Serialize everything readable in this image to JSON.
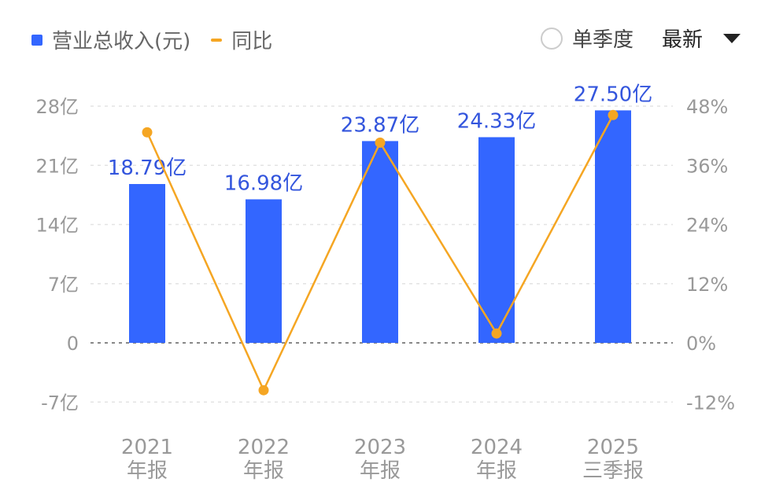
{
  "legend": {
    "bar_label": "营业总收入(元)",
    "line_label": "同比"
  },
  "controls": {
    "single_quarter_label": "单季度",
    "latest_label": "最新"
  },
  "colors": {
    "bar": "#3366ff",
    "line": "#f5a623",
    "label": "#3355dd",
    "axis_text": "#999999"
  },
  "chart_data": {
    "type": "bar+line",
    "categories": [
      [
        "2021",
        "年报"
      ],
      [
        "2022",
        "年报"
      ],
      [
        "2023",
        "年报"
      ],
      [
        "2024",
        "年报"
      ],
      [
        "2025",
        "三季报"
      ]
    ],
    "series": [
      {
        "name": "营业总收入(元)",
        "type": "bar",
        "unit": "亿",
        "values": [
          18.79,
          16.98,
          23.87,
          24.33,
          27.5
        ],
        "labels": [
          "18.79亿",
          "16.98亿",
          "23.87亿",
          "24.33亿",
          "27.50亿"
        ]
      },
      {
        "name": "同比",
        "type": "line",
        "unit": "%",
        "values": [
          42.7,
          -9.6,
          40.6,
          1.9,
          46.2
        ]
      }
    ],
    "left_axis": {
      "ylim": [
        -7,
        28
      ],
      "ticks": [
        28,
        21,
        14,
        7,
        0,
        -7
      ],
      "tick_labels": [
        "28亿",
        "21亿",
        "14亿",
        "7亿",
        "0",
        "-7亿"
      ]
    },
    "right_axis": {
      "ylim": [
        -12,
        48
      ],
      "ticks": [
        48,
        36,
        24,
        12,
        0,
        -12
      ],
      "tick_labels": [
        "48%",
        "36%",
        "24%",
        "12%",
        "0%",
        "-12%"
      ]
    },
    "grid": true,
    "legend_position": "top-left"
  }
}
